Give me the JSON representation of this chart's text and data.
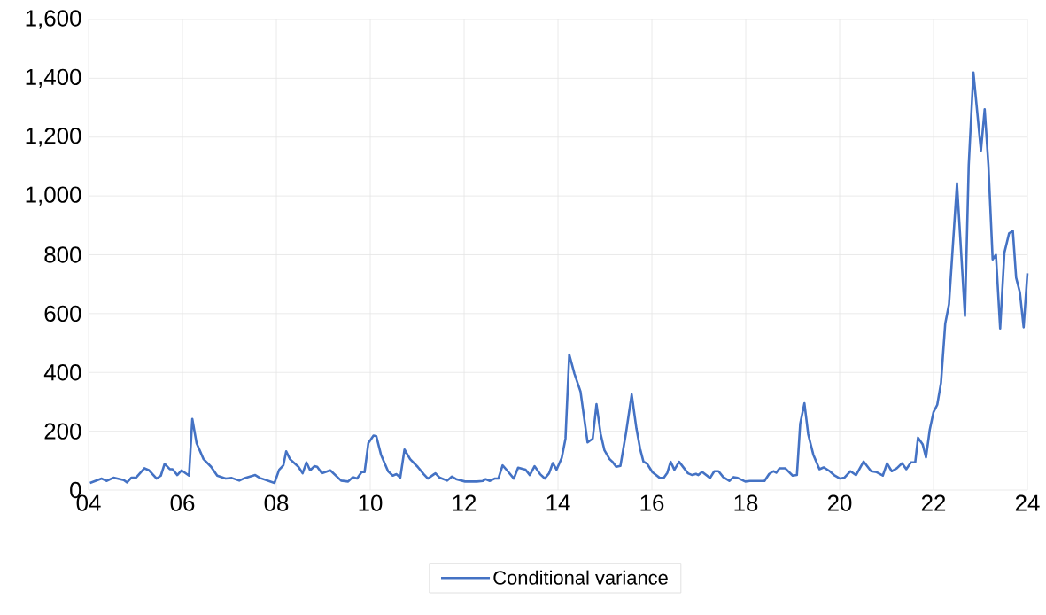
{
  "chart_data": {
    "type": "line",
    "x": [
      2004.03,
      2004.28,
      2004.38,
      2004.53,
      2004.75,
      2004.82,
      2004.91,
      2005.01,
      2005.19,
      2005.29,
      2005.45,
      2005.54,
      2005.62,
      2005.73,
      2005.79,
      2005.89,
      2005.98,
      2006.14,
      2006.21,
      2006.3,
      2006.45,
      2006.61,
      2006.74,
      2006.92,
      2007.05,
      2007.21,
      2007.33,
      2007.55,
      2007.65,
      2007.96,
      2008.06,
      2008.15,
      2008.21,
      2008.29,
      2008.47,
      2008.56,
      2008.64,
      2008.72,
      2008.81,
      2008.87,
      2008.97,
      2009.15,
      2009.38,
      2009.53,
      2009.63,
      2009.72,
      2009.82,
      2009.88,
      2009.96,
      2010.07,
      2010.13,
      2010.23,
      2010.38,
      2010.48,
      2010.56,
      2010.64,
      2010.73,
      2010.85,
      2011.01,
      2011.14,
      2011.23,
      2011.36,
      2011.39,
      2011.48,
      2011.64,
      2011.74,
      2011.83,
      2012.02,
      2012.27,
      2012.4,
      2012.46,
      2012.55,
      2012.65,
      2012.73,
      2012.82,
      2012.93,
      2013.06,
      2013.15,
      2013.31,
      2013.4,
      2013.5,
      2013.62,
      2013.72,
      2013.81,
      2013.89,
      2013.97,
      2014.08,
      2014.16,
      2014.24,
      2014.35,
      2014.48,
      2014.63,
      2014.74,
      2014.82,
      2014.91,
      2014.99,
      2015.1,
      2015.16,
      2015.24,
      2015.33,
      2015.45,
      2015.57,
      2015.67,
      2015.75,
      2015.82,
      2015.9,
      2016.01,
      2016.17,
      2016.25,
      2016.33,
      2016.4,
      2016.48,
      2016.58,
      2016.77,
      2016.86,
      2016.94,
      2016.99,
      2017.07,
      2017.24,
      2017.33,
      2017.42,
      2017.52,
      2017.65,
      2017.74,
      2017.83,
      2017.99,
      2018.09,
      2018.4,
      2018.5,
      2018.59,
      2018.65,
      2018.72,
      2018.84,
      2019.0,
      2019.09,
      2019.16,
      2019.25,
      2019.33,
      2019.44,
      2019.57,
      2019.66,
      2019.79,
      2019.88,
      2020.01,
      2020.1,
      2020.23,
      2020.35,
      2020.51,
      2020.67,
      2020.79,
      2020.92,
      2021.01,
      2021.11,
      2021.22,
      2021.33,
      2021.42,
      2021.52,
      2021.61,
      2021.67,
      2021.77,
      2021.84,
      2021.92,
      2022.0,
      2022.08,
      2022.16,
      2022.25,
      2022.33,
      2022.5,
      2022.67,
      2022.75,
      2022.85,
      2023.01,
      2023.09,
      2023.17,
      2023.26,
      2023.33,
      2023.42,
      2023.51,
      2023.61,
      2023.69,
      2023.76,
      2023.84,
      2023.92,
      2024.0
    ],
    "series": [
      {
        "name": "Conditional variance",
        "color": "#4472c4",
        "values": [
          24,
          39,
          31,
          42,
          34,
          26,
          42,
          42,
          74,
          67,
          39,
          49,
          89,
          71,
          71,
          51,
          67,
          49,
          242,
          160,
          105,
          79,
          49,
          39,
          41,
          32,
          41,
          51,
          41,
          24,
          69,
          84,
          132,
          105,
          79,
          57,
          94,
          67,
          81,
          79,
          57,
          67,
          32,
          29,
          44,
          39,
          62,
          61,
          160,
          185,
          183,
          120,
          64,
          49,
          54,
          42,
          138,
          105,
          79,
          54,
          39,
          54,
          57,
          42,
          32,
          46,
          37,
          29,
          29,
          31,
          37,
          31,
          39,
          39,
          84,
          64,
          39,
          76,
          69,
          51,
          81,
          54,
          39,
          57,
          92,
          69,
          109,
          175,
          461,
          396,
          335,
          162,
          175,
          292,
          190,
          135,
          105,
          96,
          79,
          82,
          195,
          325,
          210,
          140,
          97,
          89,
          61,
          41,
          41,
          59,
          96,
          69,
          96,
          57,
          51,
          55,
          51,
          62,
          41,
          64,
          64,
          44,
          31,
          44,
          41,
          29,
          31,
          31,
          55,
          64,
          59,
          74,
          74,
          49,
          51,
          225,
          295,
          190,
          120,
          71,
          77,
          64,
          51,
          39,
          42,
          64,
          51,
          97,
          64,
          61,
          49,
          91,
          64,
          74,
          91,
          71,
          94,
          94,
          178,
          155,
          111,
          205,
          265,
          290,
          365,
          566,
          632,
          1043,
          592,
          1104,
          1420,
          1154,
          1295,
          1104,
          784,
          800,
          549,
          807,
          873,
          881,
          722,
          672,
          553,
          737
        ]
      }
    ],
    "xlim": [
      2004,
      2024
    ],
    "xticks": [
      {
        "value": 2004,
        "label": "04"
      },
      {
        "value": 2006,
        "label": "06"
      },
      {
        "value": 2008,
        "label": "08"
      },
      {
        "value": 2010,
        "label": "10"
      },
      {
        "value": 2012,
        "label": "12"
      },
      {
        "value": 2014,
        "label": "14"
      },
      {
        "value": 2016,
        "label": "16"
      },
      {
        "value": 2018,
        "label": "18"
      },
      {
        "value": 2020,
        "label": "20"
      },
      {
        "value": 2022,
        "label": "22"
      },
      {
        "value": 2024,
        "label": "24"
      }
    ],
    "ylim": [
      0,
      1600
    ],
    "yticks": [
      0,
      200,
      400,
      600,
      800,
      {
        "value": 1000,
        "label": "1,000"
      },
      {
        "value": 1200,
        "label": "1,200"
      },
      {
        "value": 1400,
        "label": "1,400"
      },
      {
        "value": 1600,
        "label": "1,600"
      }
    ],
    "grid": true,
    "legend": "bottom",
    "marker": "none",
    "line_style": "solid"
  }
}
